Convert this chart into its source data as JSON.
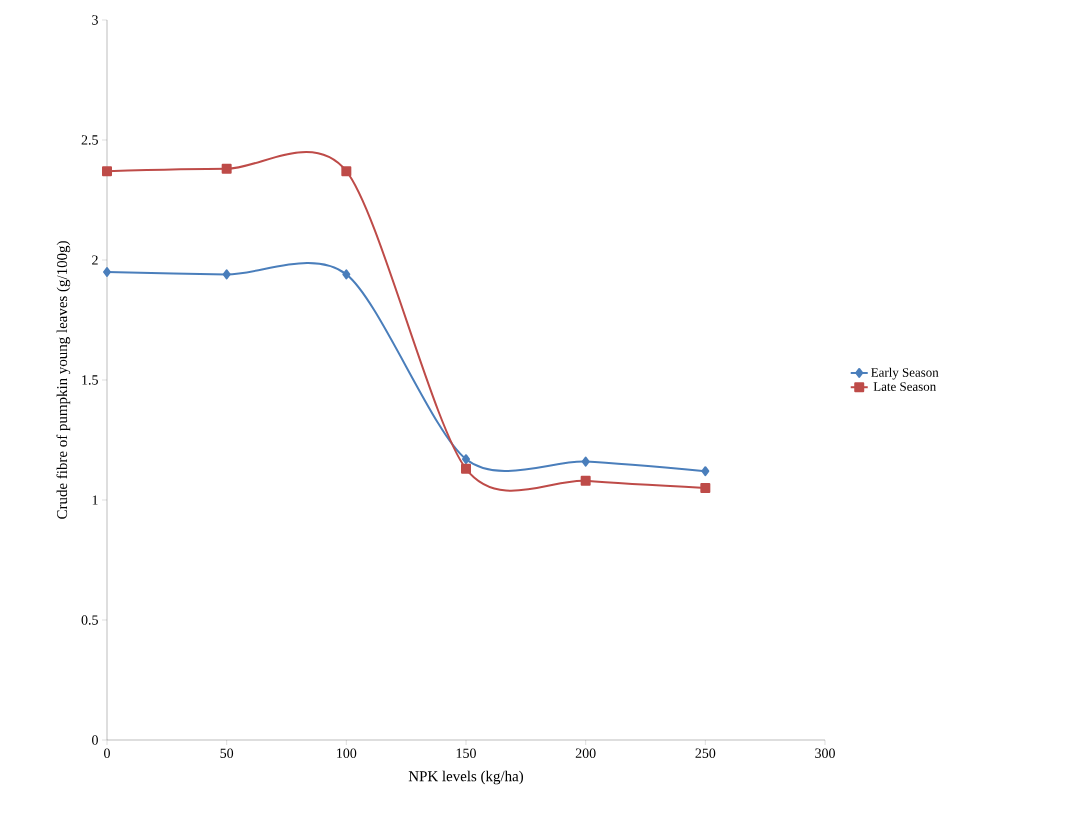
{
  "chart_data": {
    "type": "line",
    "xlabel": "NPK levels (kg/ha)",
    "ylabel": "Crude fibre of pumpkin young leaves (g/100g)",
    "x": [
      0,
      50,
      100,
      150,
      200,
      250
    ],
    "series": [
      {
        "name": "Early Season",
        "color": "#4a7ebb",
        "marker": "diamond",
        "values": [
          1.95,
          1.94,
          1.94,
          1.17,
          1.16,
          1.12
        ]
      },
      {
        "name": "Late Season",
        "color": "#be4b48",
        "marker": "square",
        "values": [
          2.37,
          2.38,
          2.37,
          1.13,
          1.08,
          1.05
        ]
      }
    ],
    "xlim": [
      0,
      300
    ],
    "xticks": [
      0,
      50,
      100,
      150,
      200,
      250,
      300
    ],
    "ylim": [
      0,
      3
    ],
    "yticks": [
      0,
      0.5,
      1,
      1.5,
      2,
      2.5,
      3
    ],
    "grid": false,
    "legend": "right"
  }
}
